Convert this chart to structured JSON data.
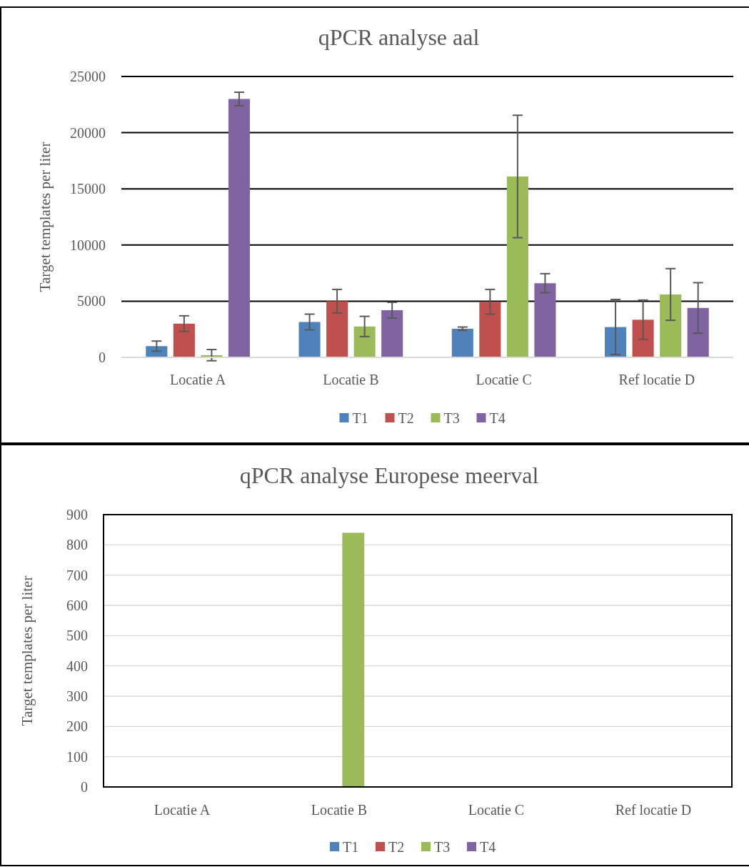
{
  "chart_data": [
    {
      "type": "bar",
      "title": "qPCR analyse aal",
      "ylabel": "Target templates per liter",
      "categories": [
        "Locatie A",
        "Locatie B",
        "Locatie C",
        "Ref locatie D"
      ],
      "series": [
        {
          "name": "T1",
          "color": "#4f81bd",
          "values": [
            1000,
            3150,
            2550,
            2700
          ],
          "errors": [
            450,
            700,
            150,
            2450
          ]
        },
        {
          "name": "T2",
          "color": "#c0504d",
          "values": [
            3000,
            5000,
            4950,
            3350
          ],
          "errors": [
            700,
            1050,
            1100,
            1750
          ]
        },
        {
          "name": "T3",
          "color": "#9bbb59",
          "values": [
            200,
            2750,
            16100,
            5600
          ],
          "errors": [
            500,
            900,
            5450,
            2300
          ]
        },
        {
          "name": "T4",
          "color": "#8064a2",
          "values": [
            23000,
            4200,
            6600,
            4400
          ],
          "errors": [
            600,
            700,
            850,
            2250
          ]
        }
      ],
      "ylim": [
        0,
        25000
      ],
      "yticks": [
        0,
        5000,
        10000,
        15000,
        20000,
        25000
      ],
      "grid": "y",
      "legend": "bottom"
    },
    {
      "type": "bar",
      "title": "qPCR analyse Europese meerval",
      "ylabel": "Target templates per liter",
      "categories": [
        "Locatie A",
        "Locatie B",
        "Locatie C",
        "Ref locatie D"
      ],
      "series": [
        {
          "name": "T1",
          "color": "#4f81bd",
          "values": [
            0,
            0,
            0,
            0
          ]
        },
        {
          "name": "T2",
          "color": "#c0504d",
          "values": [
            0,
            0,
            0,
            0
          ]
        },
        {
          "name": "T3",
          "color": "#9bbb59",
          "values": [
            0,
            840,
            0,
            0
          ]
        },
        {
          "name": "T4",
          "color": "#8064a2",
          "values": [
            0,
            0,
            0,
            0
          ]
        }
      ],
      "ylim": [
        0,
        900
      ],
      "yticks": [
        0,
        100,
        200,
        300,
        400,
        500,
        600,
        700,
        800,
        900
      ],
      "grid": "y",
      "legend": "bottom"
    }
  ]
}
